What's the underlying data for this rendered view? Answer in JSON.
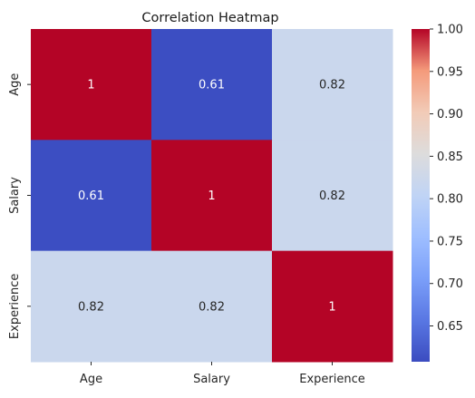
{
  "chart_data": {
    "type": "heatmap",
    "title": "Correlation Heatmap",
    "x_categories": [
      "Age",
      "Salary",
      "Experience"
    ],
    "y_categories": [
      "Age",
      "Salary",
      "Experience"
    ],
    "values": [
      [
        1,
        0.61,
        0.82
      ],
      [
        0.61,
        1,
        0.82
      ],
      [
        0.82,
        0.82,
        1
      ]
    ],
    "annotations": [
      [
        "1",
        "0.61",
        "0.82"
      ],
      [
        "0.61",
        "1",
        "0.82"
      ],
      [
        "0.82",
        "0.82",
        "1"
      ]
    ],
    "colormap": "coolwarm",
    "colorbar": {
      "min": 0.6078,
      "max": 1.0,
      "ticks": [
        0.65,
        0.7,
        0.75,
        0.8,
        0.85,
        0.9,
        0.95,
        1.0
      ],
      "tick_labels": [
        "0.65",
        "0.70",
        "0.75",
        "0.80",
        "0.85",
        "0.90",
        "0.95",
        "1.00"
      ]
    },
    "legend_placement": "right",
    "grid": false
  }
}
